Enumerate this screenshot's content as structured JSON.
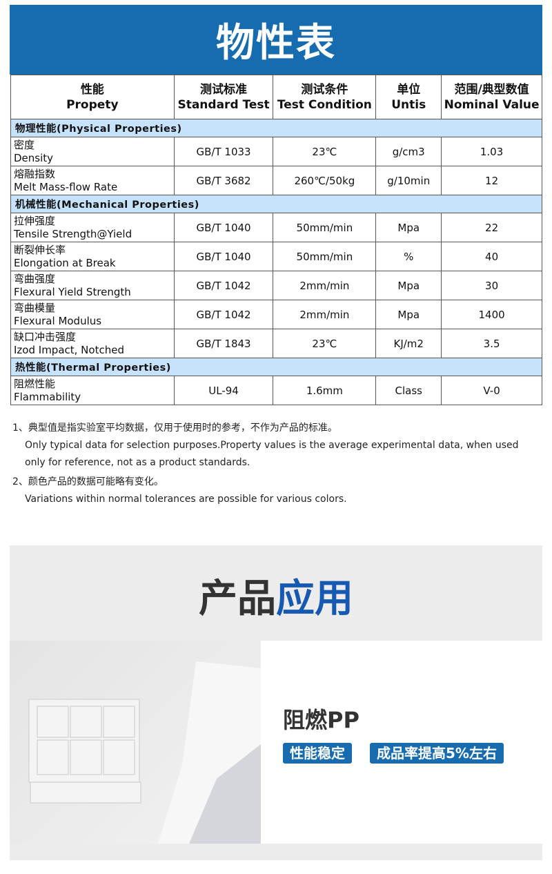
{
  "banner": {
    "title": "物性表"
  },
  "table": {
    "headers": [
      {
        "cn": "性能",
        "en": "Propety"
      },
      {
        "cn": "测试标准",
        "en": "Standard Test"
      },
      {
        "cn": "测试条件",
        "en": "Test Condition"
      },
      {
        "cn": "单位",
        "en": "Untis"
      },
      {
        "cn": "范围/典型数值",
        "en": "Nominal Value"
      }
    ],
    "sections": [
      {
        "title": "物理性能(Physical Properties)",
        "rows": [
          {
            "cn": "密度",
            "en": "Density",
            "standard": "GB/T 1033",
            "condition": "23℃",
            "unit": "g/cm3",
            "value": "1.03"
          },
          {
            "cn": "熔融指数",
            "en": "Melt Mass-flow Rate",
            "standard": "GB/T 3682",
            "condition": "260℃/50kg",
            "unit": "g/10min",
            "value": "12"
          }
        ]
      },
      {
        "title": "机械性能(Mechanical Properties)",
        "rows": [
          {
            "cn": "拉伸强度",
            "en": "Tensile Strength@Yield",
            "standard": "GB/T 1040",
            "condition": "50mm/min",
            "unit": "Mpa",
            "value": "22"
          },
          {
            "cn": "断裂伸长率",
            "en": "Elongation at Break",
            "standard": "GB/T 1040",
            "condition": "50mm/min",
            "unit": "%",
            "value": "40"
          },
          {
            "cn": "弯曲强度",
            "en": "Flexural Yield Strength",
            "standard": "GB/T 1042",
            "condition": "2mm/min",
            "unit": "Mpa",
            "value": "30"
          },
          {
            "cn": "弯曲模量",
            "en": "Flexural Modulus",
            "standard": "GB/T 1042",
            "condition": "2mm/min",
            "unit": "Mpa",
            "value": "1400"
          },
          {
            "cn": "缺口冲击强度",
            "en": "Izod Impact, Notched",
            "standard": "GB/T 1843",
            "condition": "23℃",
            "unit": "KJ/m2",
            "value": "3.5"
          }
        ]
      },
      {
        "title": "热性能(Thermal Properties)",
        "rows": [
          {
            "cn": "阻燃性能",
            "en": "Flammability",
            "standard": "UL-94",
            "condition": "1.6mm",
            "unit": "Class",
            "value": "V-0"
          }
        ]
      }
    ]
  },
  "notes": [
    {
      "cn": "1、典型值是指实验室平均数据，仅用于使用时的参考，不作为产品的标准。",
      "en": "Only typical data for selection purposes.Property values is the average experimental data, when used only for reference, not as a product standards."
    },
    {
      "cn": "2、颜色产品的数据可能略有变化。",
      "en": "Variations within normal tolerances are possible for various colors."
    }
  ],
  "application": {
    "title_dark": "产品",
    "title_blue": "应用",
    "product_name": "阻燃PP",
    "tags": [
      "性能稳定",
      "成品率提高5%左右"
    ],
    "colors": {
      "brand_blue": "#176cb0",
      "section_bg": "#c6e3fb"
    }
  }
}
